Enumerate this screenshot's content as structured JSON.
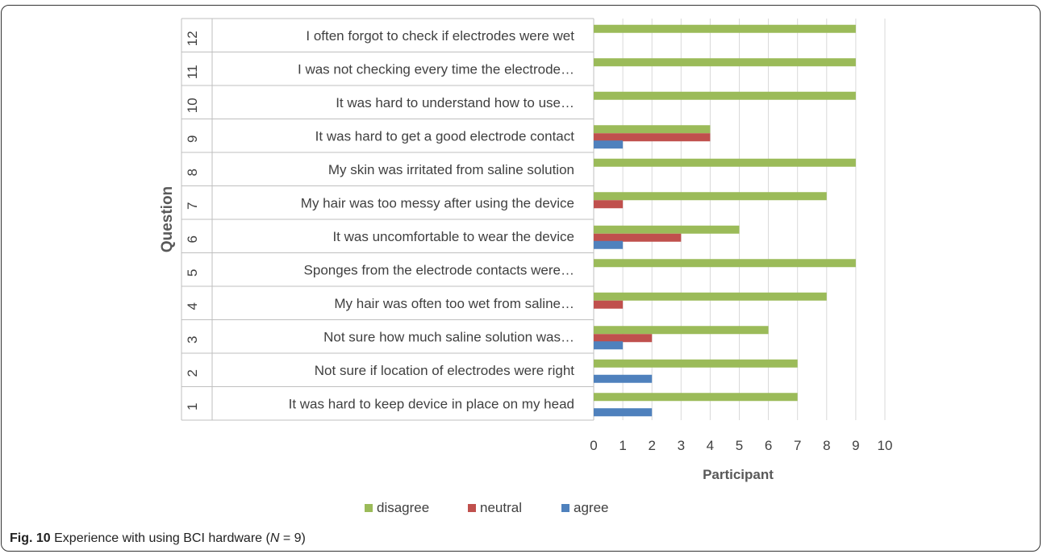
{
  "chart_data": {
    "type": "bar",
    "orientation": "horizontal",
    "xlabel": "Participant",
    "ylabel": "Question",
    "xlim": [
      0,
      10
    ],
    "x_ticks": [
      "0",
      "1",
      "2",
      "3",
      "4",
      "5",
      "6",
      "7",
      "8",
      "9",
      "10"
    ],
    "grid": true,
    "legend_position": "bottom",
    "question_numbers": [
      "1",
      "2",
      "3",
      "4",
      "5",
      "6",
      "7",
      "8",
      "9",
      "10",
      "11",
      "12"
    ],
    "categories": [
      "It was hard to keep device in place on my head",
      "Not sure if location of electrodes were right",
      "Not sure how much saline solution was…",
      "My hair was often too wet from saline…",
      "Sponges from the electrode contacts were…",
      "It was uncomfortable to wear the device",
      "My hair was too messy after using the device",
      "My skin was irritated from saline solution",
      "It was hard to get a good electrode contact",
      "It was hard to understand how to use…",
      "I was not checking every time the electrode…",
      "I often forgot to check if electrodes were wet"
    ],
    "series": [
      {
        "name": "disagree",
        "color": "#9bbb59",
        "values": [
          7,
          7,
          6,
          8,
          9,
          5,
          8,
          9,
          4,
          9,
          9,
          9
        ]
      },
      {
        "name": "neutral",
        "color": "#c0504d",
        "values": [
          0,
          0,
          2,
          1,
          0,
          3,
          1,
          0,
          4,
          0,
          0,
          0
        ]
      },
      {
        "name": "agree",
        "color": "#4f81bd",
        "values": [
          2,
          2,
          1,
          0,
          0,
          1,
          0,
          0,
          1,
          0,
          0,
          0
        ]
      }
    ]
  },
  "caption": {
    "label": "Fig. 10",
    "text_before": " Experience with using BCI hardware (",
    "n_var": "N",
    "text_after": " = 9)"
  }
}
